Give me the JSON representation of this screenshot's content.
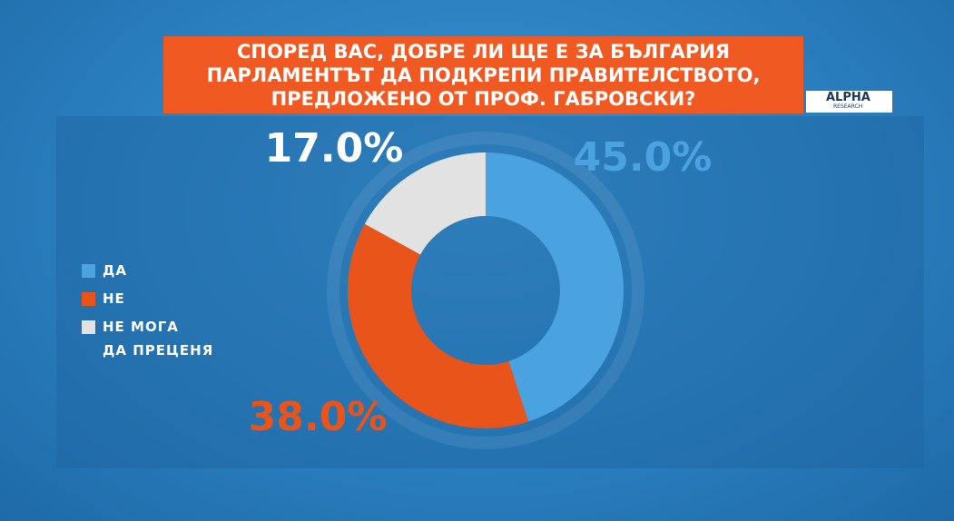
{
  "chart_data": {
    "type": "donut",
    "title": "СПОРЕД ВАС, ДОБРЕ ЛИ ЩЕ Е ЗА БЪЛГАРИЯ ПАРЛАМЕНТЪТ ДА ПОДКРЕПИ ПРАВИТЕЛСТВОТО, ПРЕДЛОЖЕНО ОТ ПРОФ. ГАБРОВСКИ?",
    "logo": "ALPHA",
    "logo_sub": "RESEARCH",
    "series": [
      {
        "name": "ДА",
        "color": "#4aa3e0",
        "label_color": "#4aa3e0",
        "values": [
          45.0
        ],
        "value_labels": [
          "45.0%"
        ]
      },
      {
        "name": "НЕ",
        "color": "#e9541b",
        "label_color": "#e9541b",
        "values": [
          38.0
        ],
        "value_labels": [
          "38.0%"
        ]
      },
      {
        "name": "НЕ МОГА ДА ПРЕЦЕНЯ",
        "color": "#e2e2e2",
        "label_color": "#ffffff",
        "values": [
          17.0
        ],
        "value_labels": [
          "17.0%"
        ]
      }
    ]
  }
}
